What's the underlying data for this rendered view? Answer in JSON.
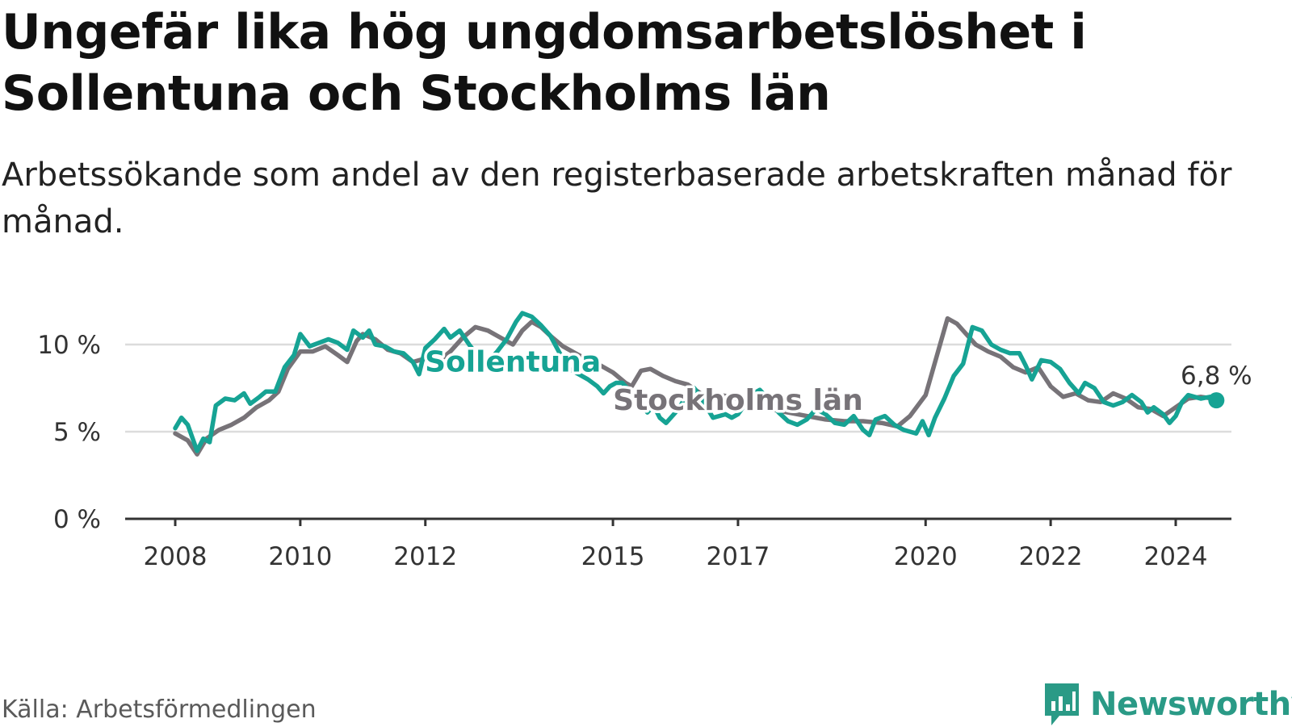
{
  "title": "Ungefär lika hög ungdomsarbetslöshet i Sollentuna och Stockholms län",
  "subtitle": "Arbetssökande som andel av den registerbaserade arbetskraften månad för månad.",
  "source": "Källa: Arbetsförmedlingen",
  "brand": "Newsworthy",
  "colors": {
    "sollentuna": "#16a394",
    "stockholm": "#777378",
    "grid": "#dcdcdc",
    "axis": "#333333",
    "brand": "#2a9a86"
  },
  "chart_data": {
    "type": "line",
    "title": "",
    "xlabel": "",
    "ylabel": "",
    "ylim": [
      0,
      12
    ],
    "xlim": [
      2008,
      2024.8
    ],
    "y_ticks": [
      {
        "value": 0,
        "label": "0 %"
      },
      {
        "value": 5,
        "label": "5 %"
      },
      {
        "value": 10,
        "label": "10 %"
      }
    ],
    "x_ticks": [
      {
        "value": 2008,
        "label": "2008"
      },
      {
        "value": 2010,
        "label": "2010"
      },
      {
        "value": 2012,
        "label": "2012"
      },
      {
        "value": 2015,
        "label": "2015"
      },
      {
        "value": 2017,
        "label": "2017"
      },
      {
        "value": 2020,
        "label": "2020"
      },
      {
        "value": 2022,
        "label": "2022"
      },
      {
        "value": 2024,
        "label": "2024"
      }
    ],
    "grid": true,
    "series": [
      {
        "name": "Stockholms län",
        "label_anchor": {
          "x": 2017.0,
          "y": 6.8
        },
        "points": [
          [
            2008.0,
            4.9
          ],
          [
            2008.2,
            4.5
          ],
          [
            2008.35,
            3.7
          ],
          [
            2008.5,
            4.6
          ],
          [
            2008.7,
            5.1
          ],
          [
            2008.9,
            5.4
          ],
          [
            2009.1,
            5.8
          ],
          [
            2009.3,
            6.4
          ],
          [
            2009.5,
            6.8
          ],
          [
            2009.65,
            7.3
          ],
          [
            2009.8,
            8.6
          ],
          [
            2010.0,
            9.6
          ],
          [
            2010.2,
            9.6
          ],
          [
            2010.4,
            9.9
          ],
          [
            2010.6,
            9.4
          ],
          [
            2010.75,
            9.0
          ],
          [
            2010.9,
            10.2
          ],
          [
            2011.0,
            10.6
          ],
          [
            2011.2,
            10.3
          ],
          [
            2011.4,
            9.7
          ],
          [
            2011.6,
            9.5
          ],
          [
            2011.8,
            9.0
          ],
          [
            2012.0,
            9.2
          ],
          [
            2012.2,
            9.0
          ],
          [
            2012.4,
            9.6
          ],
          [
            2012.6,
            10.4
          ],
          [
            2012.8,
            11.0
          ],
          [
            2013.0,
            10.8
          ],
          [
            2013.2,
            10.4
          ],
          [
            2013.4,
            10.0
          ],
          [
            2013.55,
            10.8
          ],
          [
            2013.7,
            11.3
          ],
          [
            2013.85,
            11.0
          ],
          [
            2014.0,
            10.5
          ],
          [
            2014.2,
            9.9
          ],
          [
            2014.4,
            9.5
          ],
          [
            2014.6,
            9.1
          ],
          [
            2014.8,
            8.8
          ],
          [
            2015.0,
            8.4
          ],
          [
            2015.2,
            7.8
          ],
          [
            2015.3,
            7.6
          ],
          [
            2015.45,
            8.5
          ],
          [
            2015.6,
            8.6
          ],
          [
            2015.8,
            8.2
          ],
          [
            2016.0,
            7.9
          ],
          [
            2016.2,
            7.7
          ],
          [
            2016.4,
            7.2
          ],
          [
            2016.55,
            6.7
          ],
          [
            2016.7,
            7.1
          ],
          [
            2016.9,
            7.0
          ],
          [
            2017.2,
            6.6
          ],
          [
            2017.5,
            6.3
          ],
          [
            2017.8,
            6.1
          ],
          [
            2018.1,
            5.9
          ],
          [
            2018.4,
            5.7
          ],
          [
            2018.7,
            5.6
          ],
          [
            2019.0,
            5.6
          ],
          [
            2019.3,
            5.5
          ],
          [
            2019.55,
            5.3
          ],
          [
            2019.75,
            5.9
          ],
          [
            2020.0,
            7.1
          ],
          [
            2020.2,
            9.6
          ],
          [
            2020.35,
            11.5
          ],
          [
            2020.5,
            11.2
          ],
          [
            2020.6,
            10.8
          ],
          [
            2020.8,
            10.0
          ],
          [
            2021.0,
            9.6
          ],
          [
            2021.2,
            9.3
          ],
          [
            2021.4,
            8.7
          ],
          [
            2021.6,
            8.4
          ],
          [
            2021.8,
            8.7
          ],
          [
            2022.0,
            7.6
          ],
          [
            2022.2,
            7.0
          ],
          [
            2022.4,
            7.2
          ],
          [
            2022.6,
            6.8
          ],
          [
            2022.8,
            6.7
          ],
          [
            2023.0,
            7.2
          ],
          [
            2023.2,
            6.9
          ],
          [
            2023.4,
            6.4
          ],
          [
            2023.6,
            6.3
          ],
          [
            2023.8,
            5.9
          ],
          [
            2024.0,
            6.4
          ],
          [
            2024.2,
            6.9
          ],
          [
            2024.4,
            7.0
          ],
          [
            2024.6,
            6.9
          ]
        ]
      },
      {
        "name": "Sollentuna",
        "label_anchor": {
          "x": 2013.4,
          "y": 9.0
        },
        "last_value_label": "6,8 %",
        "points": [
          [
            2008.0,
            5.2
          ],
          [
            2008.1,
            5.8
          ],
          [
            2008.2,
            5.4
          ],
          [
            2008.35,
            3.9
          ],
          [
            2008.45,
            4.6
          ],
          [
            2008.55,
            4.4
          ],
          [
            2008.65,
            6.5
          ],
          [
            2008.8,
            6.9
          ],
          [
            2008.95,
            6.8
          ],
          [
            2009.1,
            7.2
          ],
          [
            2009.2,
            6.6
          ],
          [
            2009.35,
            7.0
          ],
          [
            2009.45,
            7.3
          ],
          [
            2009.6,
            7.3
          ],
          [
            2009.75,
            8.7
          ],
          [
            2009.9,
            9.4
          ],
          [
            2010.0,
            10.6
          ],
          [
            2010.15,
            9.9
          ],
          [
            2010.3,
            10.1
          ],
          [
            2010.45,
            10.3
          ],
          [
            2010.6,
            10.1
          ],
          [
            2010.75,
            9.7
          ],
          [
            2010.85,
            10.8
          ],
          [
            2011.0,
            10.4
          ],
          [
            2011.1,
            10.8
          ],
          [
            2011.2,
            10.0
          ],
          [
            2011.35,
            9.9
          ],
          [
            2011.5,
            9.6
          ],
          [
            2011.65,
            9.5
          ],
          [
            2011.8,
            9.0
          ],
          [
            2011.9,
            8.3
          ],
          [
            2012.0,
            9.8
          ],
          [
            2012.15,
            10.3
          ],
          [
            2012.3,
            10.9
          ],
          [
            2012.4,
            10.4
          ],
          [
            2012.55,
            10.8
          ],
          [
            2012.7,
            10.0
          ],
          [
            2012.85,
            9.3
          ],
          [
            2013.0,
            9.0
          ],
          [
            2013.15,
            9.6
          ],
          [
            2013.3,
            10.3
          ],
          [
            2013.45,
            11.3
          ],
          [
            2013.55,
            11.8
          ],
          [
            2013.7,
            11.6
          ],
          [
            2013.85,
            11.1
          ],
          [
            2014.0,
            10.5
          ],
          [
            2014.15,
            9.5
          ],
          [
            2014.3,
            8.6
          ],
          [
            2014.45,
            8.3
          ],
          [
            2014.6,
            8.0
          ],
          [
            2014.75,
            7.6
          ],
          [
            2014.85,
            7.2
          ],
          [
            2014.95,
            7.6
          ],
          [
            2015.05,
            7.8
          ],
          [
            2015.15,
            7.8
          ],
          [
            2015.3,
            7.2
          ],
          [
            2015.45,
            6.6
          ],
          [
            2015.55,
            6.1
          ],
          [
            2015.65,
            6.5
          ],
          [
            2015.75,
            5.8
          ],
          [
            2015.85,
            5.5
          ],
          [
            2016.0,
            6.1
          ],
          [
            2016.1,
            6.6
          ],
          [
            2016.2,
            7.3
          ],
          [
            2016.3,
            7.5
          ],
          [
            2016.4,
            7.0
          ],
          [
            2016.5,
            6.4
          ],
          [
            2016.6,
            5.8
          ],
          [
            2016.7,
            5.9
          ],
          [
            2016.8,
            6.0
          ],
          [
            2016.9,
            5.8
          ],
          [
            2017.0,
            6.0
          ],
          [
            2017.1,
            6.5
          ],
          [
            2017.2,
            7.1
          ],
          [
            2017.35,
            7.4
          ],
          [
            2017.5,
            6.8
          ],
          [
            2017.65,
            6.1
          ],
          [
            2017.8,
            5.6
          ],
          [
            2017.95,
            5.4
          ],
          [
            2018.1,
            5.7
          ],
          [
            2018.25,
            6.3
          ],
          [
            2018.4,
            6.0
          ],
          [
            2018.55,
            5.5
          ],
          [
            2018.7,
            5.4
          ],
          [
            2018.85,
            5.9
          ],
          [
            2019.0,
            5.1
          ],
          [
            2019.1,
            4.8
          ],
          [
            2019.2,
            5.7
          ],
          [
            2019.35,
            5.9
          ],
          [
            2019.5,
            5.4
          ],
          [
            2019.65,
            5.1
          ],
          [
            2019.75,
            5.0
          ],
          [
            2019.85,
            4.9
          ],
          [
            2019.95,
            5.6
          ],
          [
            2020.05,
            4.8
          ],
          [
            2020.15,
            5.8
          ],
          [
            2020.3,
            6.9
          ],
          [
            2020.45,
            8.2
          ],
          [
            2020.6,
            8.9
          ],
          [
            2020.75,
            11.0
          ],
          [
            2020.9,
            10.8
          ],
          [
            2021.05,
            10.0
          ],
          [
            2021.2,
            9.7
          ],
          [
            2021.35,
            9.5
          ],
          [
            2021.5,
            9.5
          ],
          [
            2021.6,
            8.8
          ],
          [
            2021.7,
            8.0
          ],
          [
            2021.85,
            9.1
          ],
          [
            2022.0,
            9.0
          ],
          [
            2022.15,
            8.6
          ],
          [
            2022.3,
            7.8
          ],
          [
            2022.45,
            7.2
          ],
          [
            2022.55,
            7.8
          ],
          [
            2022.7,
            7.5
          ],
          [
            2022.85,
            6.7
          ],
          [
            2023.0,
            6.5
          ],
          [
            2023.15,
            6.7
          ],
          [
            2023.3,
            7.1
          ],
          [
            2023.45,
            6.7
          ],
          [
            2023.55,
            6.1
          ],
          [
            2023.65,
            6.4
          ],
          [
            2023.8,
            6.0
          ],
          [
            2023.9,
            5.5
          ],
          [
            2024.0,
            5.9
          ],
          [
            2024.1,
            6.7
          ],
          [
            2024.2,
            7.1
          ],
          [
            2024.3,
            7.0
          ],
          [
            2024.4,
            6.9
          ],
          [
            2024.55,
            7.0
          ],
          [
            2024.65,
            6.8
          ]
        ]
      }
    ]
  }
}
